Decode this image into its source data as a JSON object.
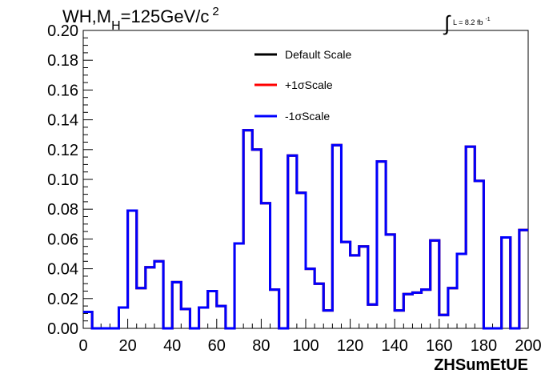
{
  "chart_data": {
    "type": "line",
    "title_main": "WH,M",
    "title_sub": "H",
    "title_rest": "=125GeV/c",
    "title_sup": "2",
    "lumi": {
      "integral_symbol": "∫",
      "text": "L = 8.2 fb",
      "sup": "-1"
    },
    "xlabel": "ZHSumEtUE",
    "ylabel": "",
    "xlim": [
      0,
      200
    ],
    "ylim": [
      0,
      0.2
    ],
    "x_ticks": [
      "0",
      "20",
      "40",
      "60",
      "80",
      "100",
      "120",
      "140",
      "160",
      "180",
      "200"
    ],
    "y_ticks": [
      "0.00",
      "0.02",
      "0.04",
      "0.06",
      "0.08",
      "0.10",
      "0.12",
      "0.14",
      "0.16",
      "0.18",
      "0.20"
    ],
    "bin_edges": [
      0,
      4,
      8,
      12,
      16,
      20,
      24,
      28,
      32,
      36,
      40,
      44,
      48,
      52,
      56,
      60,
      64,
      68,
      72,
      76,
      80,
      84,
      88,
      92,
      96,
      100,
      104,
      108,
      112,
      116,
      120,
      124,
      128,
      132,
      136,
      140,
      144,
      148,
      152,
      156,
      160,
      164,
      168,
      172,
      176,
      180,
      184,
      188,
      192,
      196,
      200
    ],
    "series": [
      {
        "name": "Default Scale",
        "color": "#000000",
        "values": [
          0.011,
          0,
          0,
          0,
          0.014,
          0.079,
          0.027,
          0.041,
          0.045,
          0,
          0.031,
          0.013,
          0,
          0.014,
          0.025,
          0.015,
          0,
          0.057,
          0.133,
          0.12,
          0.084,
          0.026,
          0,
          0.116,
          0.091,
          0.04,
          0.03,
          0.012,
          0.123,
          0.058,
          0.049,
          0.055,
          0.016,
          0.112,
          0.063,
          0.012,
          0.023,
          0.024,
          0.026,
          0.059,
          0.009,
          0.027,
          0.05,
          0.122,
          0.099,
          0,
          0,
          0.061,
          0,
          0.066
        ]
      },
      {
        "name": "+1σScale",
        "color": "#ff0000",
        "values": [
          0.011,
          0,
          0,
          0,
          0.014,
          0.079,
          0.027,
          0.041,
          0.045,
          0,
          0.031,
          0.013,
          0,
          0.014,
          0.025,
          0.015,
          0,
          0.057,
          0.133,
          0.12,
          0.084,
          0.026,
          0,
          0.116,
          0.091,
          0.04,
          0.03,
          0.012,
          0.123,
          0.058,
          0.049,
          0.055,
          0.016,
          0.112,
          0.063,
          0.012,
          0.023,
          0.024,
          0.026,
          0.059,
          0.009,
          0.027,
          0.05,
          0.122,
          0.099,
          0,
          0,
          0.061,
          0,
          0.066
        ]
      },
      {
        "name": "-1σScale",
        "color": "#0000ff",
        "values": [
          0.011,
          0,
          0,
          0,
          0.014,
          0.079,
          0.027,
          0.041,
          0.045,
          0,
          0.031,
          0.013,
          0,
          0.014,
          0.025,
          0.015,
          0,
          0.057,
          0.133,
          0.12,
          0.084,
          0.026,
          0,
          0.116,
          0.091,
          0.04,
          0.03,
          0.012,
          0.123,
          0.058,
          0.049,
          0.055,
          0.016,
          0.112,
          0.063,
          0.012,
          0.023,
          0.024,
          0.026,
          0.059,
          0.009,
          0.027,
          0.05,
          0.122,
          0.099,
          0,
          0,
          0.061,
          0,
          0.066
        ]
      }
    ],
    "legend_position": "top-center",
    "grid": false
  }
}
